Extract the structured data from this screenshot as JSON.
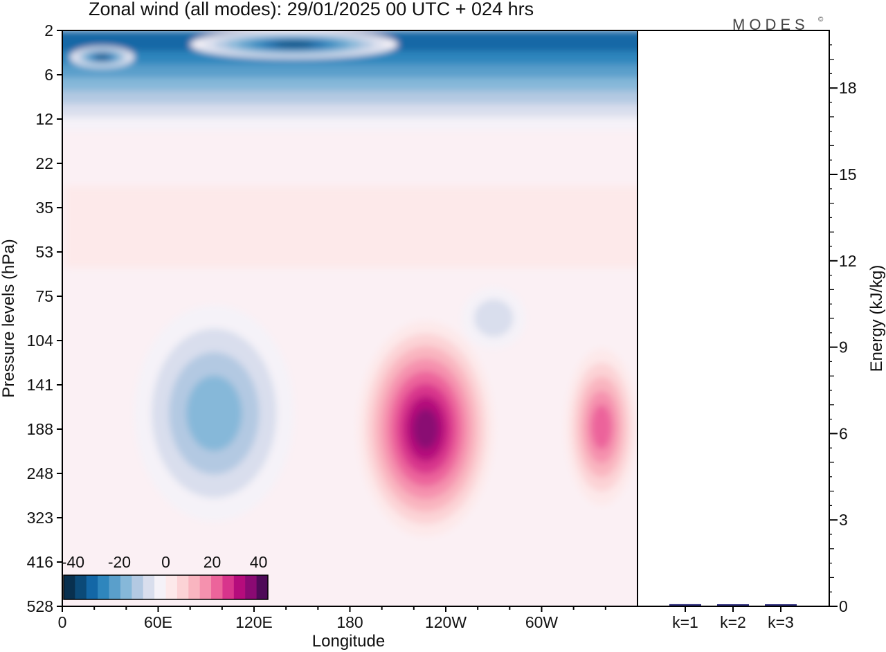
{
  "title": "Zonal wind (all modes):  29/01/2025  00 UTC  + 024 hrs",
  "logo": "MODES",
  "logo_mark": "©",
  "colors": {
    "bg": "#ffffff",
    "axis": "#000000",
    "bar": "#2a2a7a"
  },
  "chart_data": [
    {
      "type": "heatmap",
      "title": "Zonal wind (all modes):  29/01/2025  00 UTC  + 024 hrs",
      "xlabel": "Longitude",
      "ylabel": "Pressure levels (hPa)",
      "x_ticks": [
        "0",
        "60E",
        "120E",
        "180",
        "120W",
        "60W"
      ],
      "y_ticks": [
        "2",
        "6",
        "12",
        "22",
        "35",
        "53",
        "75",
        "104",
        "141",
        "188",
        "248",
        "323",
        "416",
        "528"
      ],
      "x_range_deg": [
        0,
        360
      ],
      "colorbar": {
        "tick_labels": [
          "-40",
          "-20",
          "0",
          "20",
          "40"
        ],
        "range": [
          -44,
          44
        ],
        "levels": [
          -40,
          -35,
          -30,
          -25,
          -20,
          -15,
          -10,
          -5,
          0,
          5,
          10,
          15,
          20,
          25,
          30,
          35,
          40
        ],
        "colors": [
          "#08304f",
          "#0b4a78",
          "#1367a6",
          "#2f86bd",
          "#5a9fcb",
          "#86b8d9",
          "#b3c9e2",
          "#d9deed",
          "#f5f2f8",
          "#fde9ea",
          "#fcd3d6",
          "#f9b5c0",
          "#f591ae",
          "#ec649b",
          "#d8348c",
          "#b50c7c",
          "#8a0a73",
          "#4e0a58"
        ]
      },
      "features": [
        {
          "kind": "westward band",
          "lon": [
            0,
            360
          ],
          "level_hPa": [
            2,
            14
          ],
          "value_ms": -35
        },
        {
          "kind": "westward core",
          "lon": [
            80,
            210
          ],
          "level_hPa": [
            2,
            4
          ],
          "value_ms": -40
        },
        {
          "kind": "westward core",
          "lon": [
            5,
            45
          ],
          "level_hPa": [
            3,
            5
          ],
          "value_ms": -38
        },
        {
          "kind": "eastward band",
          "lon": [
            10,
            360
          ],
          "level_hPa": [
            28,
            60
          ],
          "value_ms": 6
        },
        {
          "kind": "westward jet",
          "lon": [
            45,
            145
          ],
          "level_hPa": [
            80,
            330
          ],
          "value_ms": -22
        },
        {
          "kind": "westward region",
          "lon": [
            250,
            290
          ],
          "level_hPa": [
            70,
            110
          ],
          "value_ms": -12
        },
        {
          "kind": "eastward jet",
          "lon": [
            185,
            270
          ],
          "level_hPa": [
            90,
            360
          ],
          "value_ms": 40
        },
        {
          "kind": "eastward jet",
          "lon": [
            315,
            360
          ],
          "level_hPa": [
            110,
            300
          ],
          "value_ms": 25
        }
      ]
    },
    {
      "type": "bar",
      "ylabel": "Energy (kJ/kg)",
      "categories": [
        "k=1",
        "k=2",
        "k=3"
      ],
      "values": [
        0.05,
        0.03,
        0.01
      ],
      "ylim": [
        0,
        20
      ],
      "y_ticks": [
        "0",
        "3",
        "6",
        "9",
        "12",
        "15",
        "18"
      ]
    }
  ]
}
